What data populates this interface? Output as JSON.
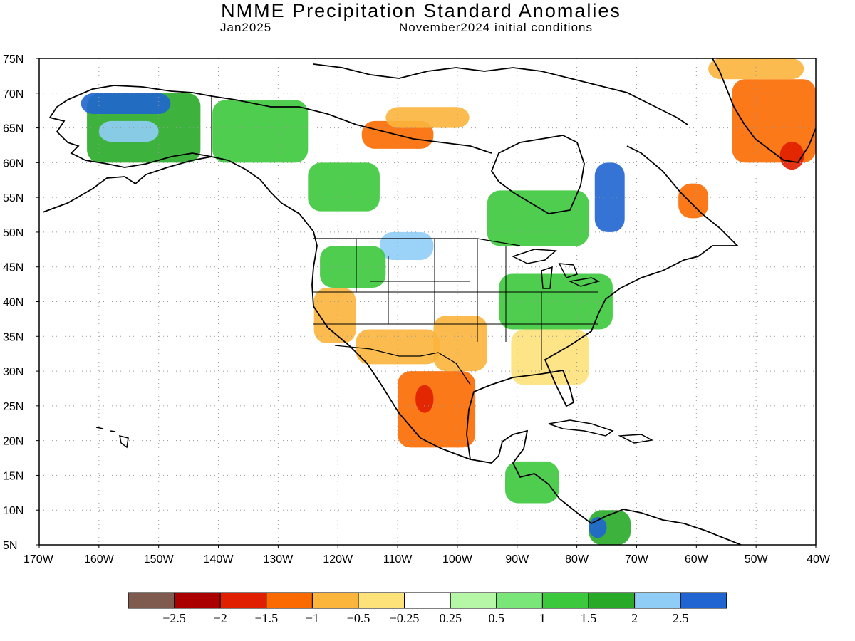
{
  "map": {
    "title": "NMME Precipitation Standard Anomalies",
    "target_month": "Jan2025",
    "initial_conditions": "November2024 initial conditions",
    "variable": "precipitation standard anomaly",
    "region": "North America",
    "projection": "cylindrical equidistant",
    "lat_range": [
      5,
      75
    ],
    "lon_range": [
      -170,
      -40
    ],
    "lat_ticks": [
      "75N",
      "70N",
      "65N",
      "60N",
      "55N",
      "50N",
      "45N",
      "40N",
      "35N",
      "30N",
      "25N",
      "20N",
      "15N",
      "10N",
      "5N"
    ],
    "lon_ticks": [
      "170W",
      "160W",
      "150W",
      "140W",
      "130W",
      "120W",
      "110W",
      "100W",
      "90W",
      "80W",
      "70W",
      "60W",
      "50W",
      "40W"
    ],
    "grid": "dotted",
    "anomaly_regions": [
      {
        "name": "Alaska interior",
        "lon": [
          -162,
          -143
        ],
        "lat": [
          60,
          70
        ],
        "level": 1.5
      },
      {
        "name": "Alaska north slope",
        "lon": [
          -163,
          -148
        ],
        "lat": [
          67,
          70
        ],
        "level": 2.5
      },
      {
        "name": "Alaska west",
        "lon": [
          -160,
          -150
        ],
        "lat": [
          63,
          66
        ],
        "level": 2
      },
      {
        "name": "Yukon",
        "lon": [
          -141,
          -125
        ],
        "lat": [
          60,
          69
        ],
        "level": 1.2
      },
      {
        "name": "NW Territories south",
        "lon": [
          -125,
          -113
        ],
        "lat": [
          53,
          60
        ],
        "level": 1.2
      },
      {
        "name": "Hudson Bay west",
        "lon": [
          -116,
          -104
        ],
        "lat": [
          62,
          66
        ],
        "level": -1.2
      },
      {
        "name": "Arctic islands central",
        "lon": [
          -112,
          -98
        ],
        "lat": [
          65,
          68
        ],
        "level": -0.6
      },
      {
        "name": "Ontario / Quebec",
        "lon": [
          -95,
          -78
        ],
        "lat": [
          48,
          56
        ],
        "level": 1.2
      },
      {
        "name": "Labrador",
        "lon": [
          -77,
          -72
        ],
        "lat": [
          50,
          60
        ],
        "level": 2.5
      },
      {
        "name": "Labrador coast",
        "lon": [
          -63,
          -58
        ],
        "lat": [
          52,
          57
        ],
        "level": -1.5
      },
      {
        "name": "Montana / Saskatchewan",
        "lon": [
          -113,
          -104
        ],
        "lat": [
          46,
          50
        ],
        "level": 2
      },
      {
        "name": "Pacific Northwest",
        "lon": [
          -123,
          -112
        ],
        "lat": [
          42,
          48
        ],
        "level": 1
      },
      {
        "name": "Great Lakes / Ohio Valley",
        "lon": [
          -93,
          -74
        ],
        "lat": [
          36,
          44
        ],
        "level": 1
      },
      {
        "name": "California",
        "lon": [
          -124,
          -117
        ],
        "lat": [
          34,
          42
        ],
        "level": -1
      },
      {
        "name": "Southwest",
        "lon": [
          -117,
          -103
        ],
        "lat": [
          31,
          36
        ],
        "level": -0.6
      },
      {
        "name": "Southern Plains",
        "lon": [
          -104,
          -95
        ],
        "lat": [
          30,
          38
        ],
        "level": -0.8
      },
      {
        "name": "Southeast",
        "lon": [
          -91,
          -78
        ],
        "lat": [
          28,
          36
        ],
        "level": -0.5
      },
      {
        "name": "Northern Mexico",
        "lon": [
          -110,
          -97
        ],
        "lat": [
          19,
          30
        ],
        "level": -1.5
      },
      {
        "name": "Sierra Madre west",
        "lon": [
          -107,
          -104
        ],
        "lat": [
          24,
          28
        ],
        "level": -2
      },
      {
        "name": "Central America",
        "lon": [
          -92,
          -83
        ],
        "lat": [
          11,
          17
        ],
        "level": 1
      },
      {
        "name": "Colombia",
        "lon": [
          -78,
          -71
        ],
        "lat": [
          5,
          10
        ],
        "level": 1.5
      },
      {
        "name": "Colombia west",
        "lon": [
          -78,
          -75
        ],
        "lat": [
          6,
          9
        ],
        "level": 2.5
      },
      {
        "name": "Greenland southwest",
        "lon": [
          -54,
          -40
        ],
        "lat": [
          60,
          72
        ],
        "level": -1.5
      },
      {
        "name": "Greenland south tip",
        "lon": [
          -46,
          -42
        ],
        "lat": [
          59,
          63
        ],
        "level": -2
      },
      {
        "name": "Greenland north",
        "lon": [
          -58,
          -42
        ],
        "lat": [
          72,
          75
        ],
        "level": -0.8
      }
    ]
  },
  "colorbar": {
    "colors": [
      "#7f5a4f",
      "#aa0000",
      "#e01e00",
      "#fb6a00",
      "#fbb43c",
      "#fde27a",
      "#ffffff",
      "#b6f7a7",
      "#7ae67a",
      "#3cc83c",
      "#28aa28",
      "#8fcdf7",
      "#1f64d0"
    ],
    "labels": [
      "−2.5",
      "−2",
      "−1.5",
      "−1",
      "−0.5",
      "−0.25",
      "0.25",
      "0.5",
      "1",
      "1.5",
      "2",
      "2.5"
    ]
  }
}
